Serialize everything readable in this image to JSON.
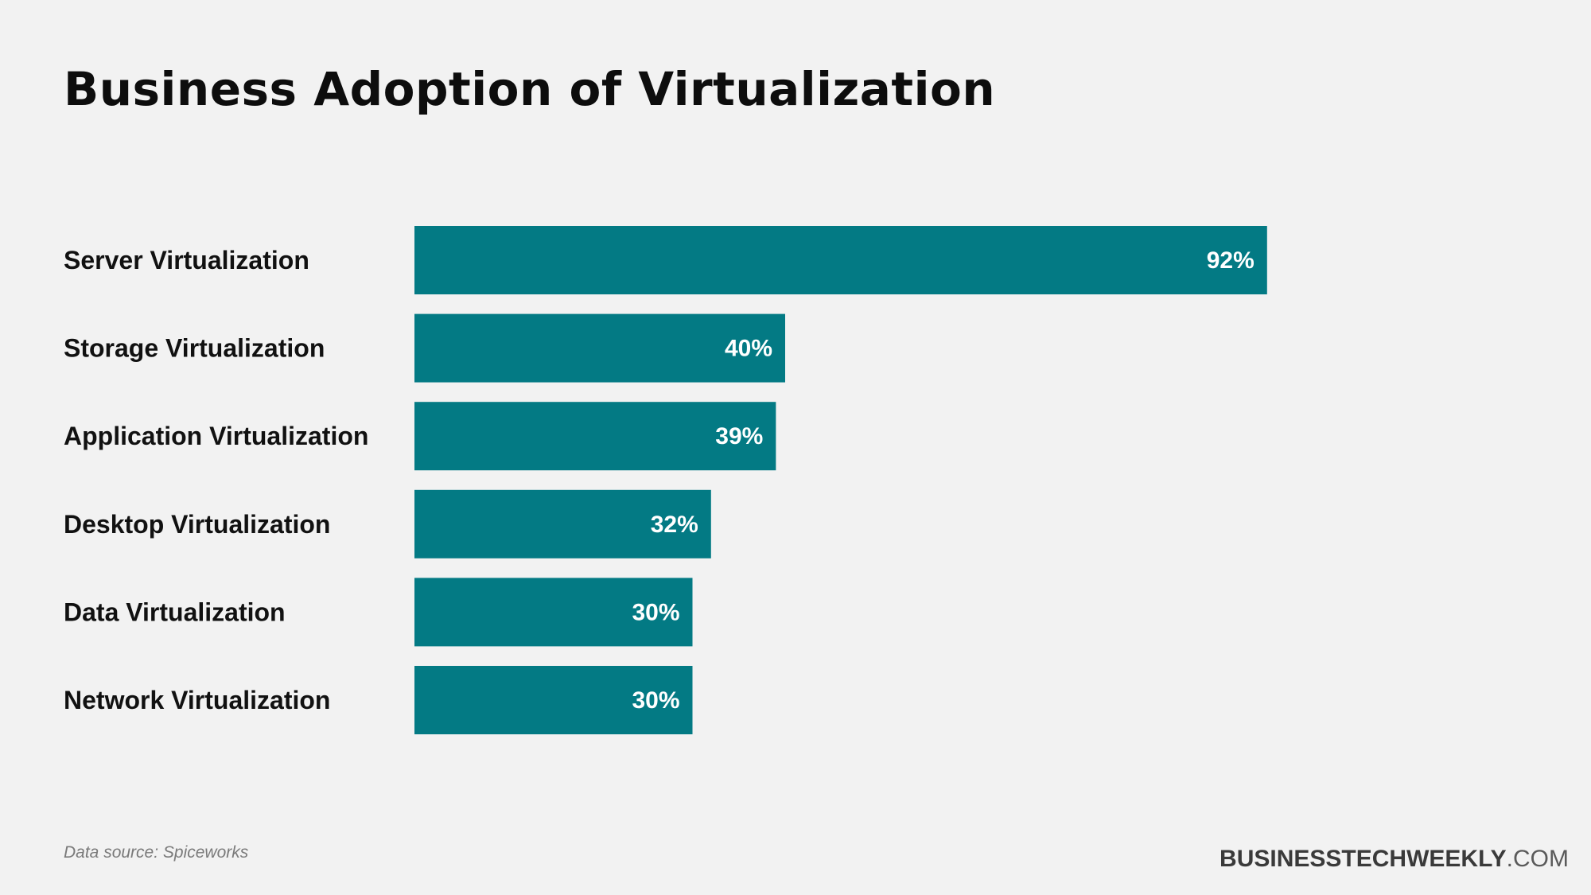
{
  "colors": {
    "background": "#f2f2f2",
    "bar": "#037a84",
    "bar_value_text": "#ffffff",
    "label_text": "#111111"
  },
  "chart_data": {
    "type": "bar",
    "orientation": "horizontal",
    "title": "Business Adoption of Virtualization",
    "categories": [
      "Server Virtualization",
      "Storage Virtualization",
      "Application Virtualization",
      "Desktop Virtualization",
      "Data Virtualization",
      "Network Virtualization"
    ],
    "values": [
      92,
      40,
      39,
      32,
      30,
      30
    ],
    "value_labels": [
      "92%",
      "40%",
      "39%",
      "32%",
      "30%",
      "30%"
    ],
    "unit": "%",
    "xlim": [
      0,
      100
    ],
    "grid": false,
    "legend": "none"
  },
  "footer": {
    "source": "Data source: Spiceworks",
    "brand_bold": "BUSINESSTECHWEEKLY",
    "brand_light": ".COM"
  }
}
